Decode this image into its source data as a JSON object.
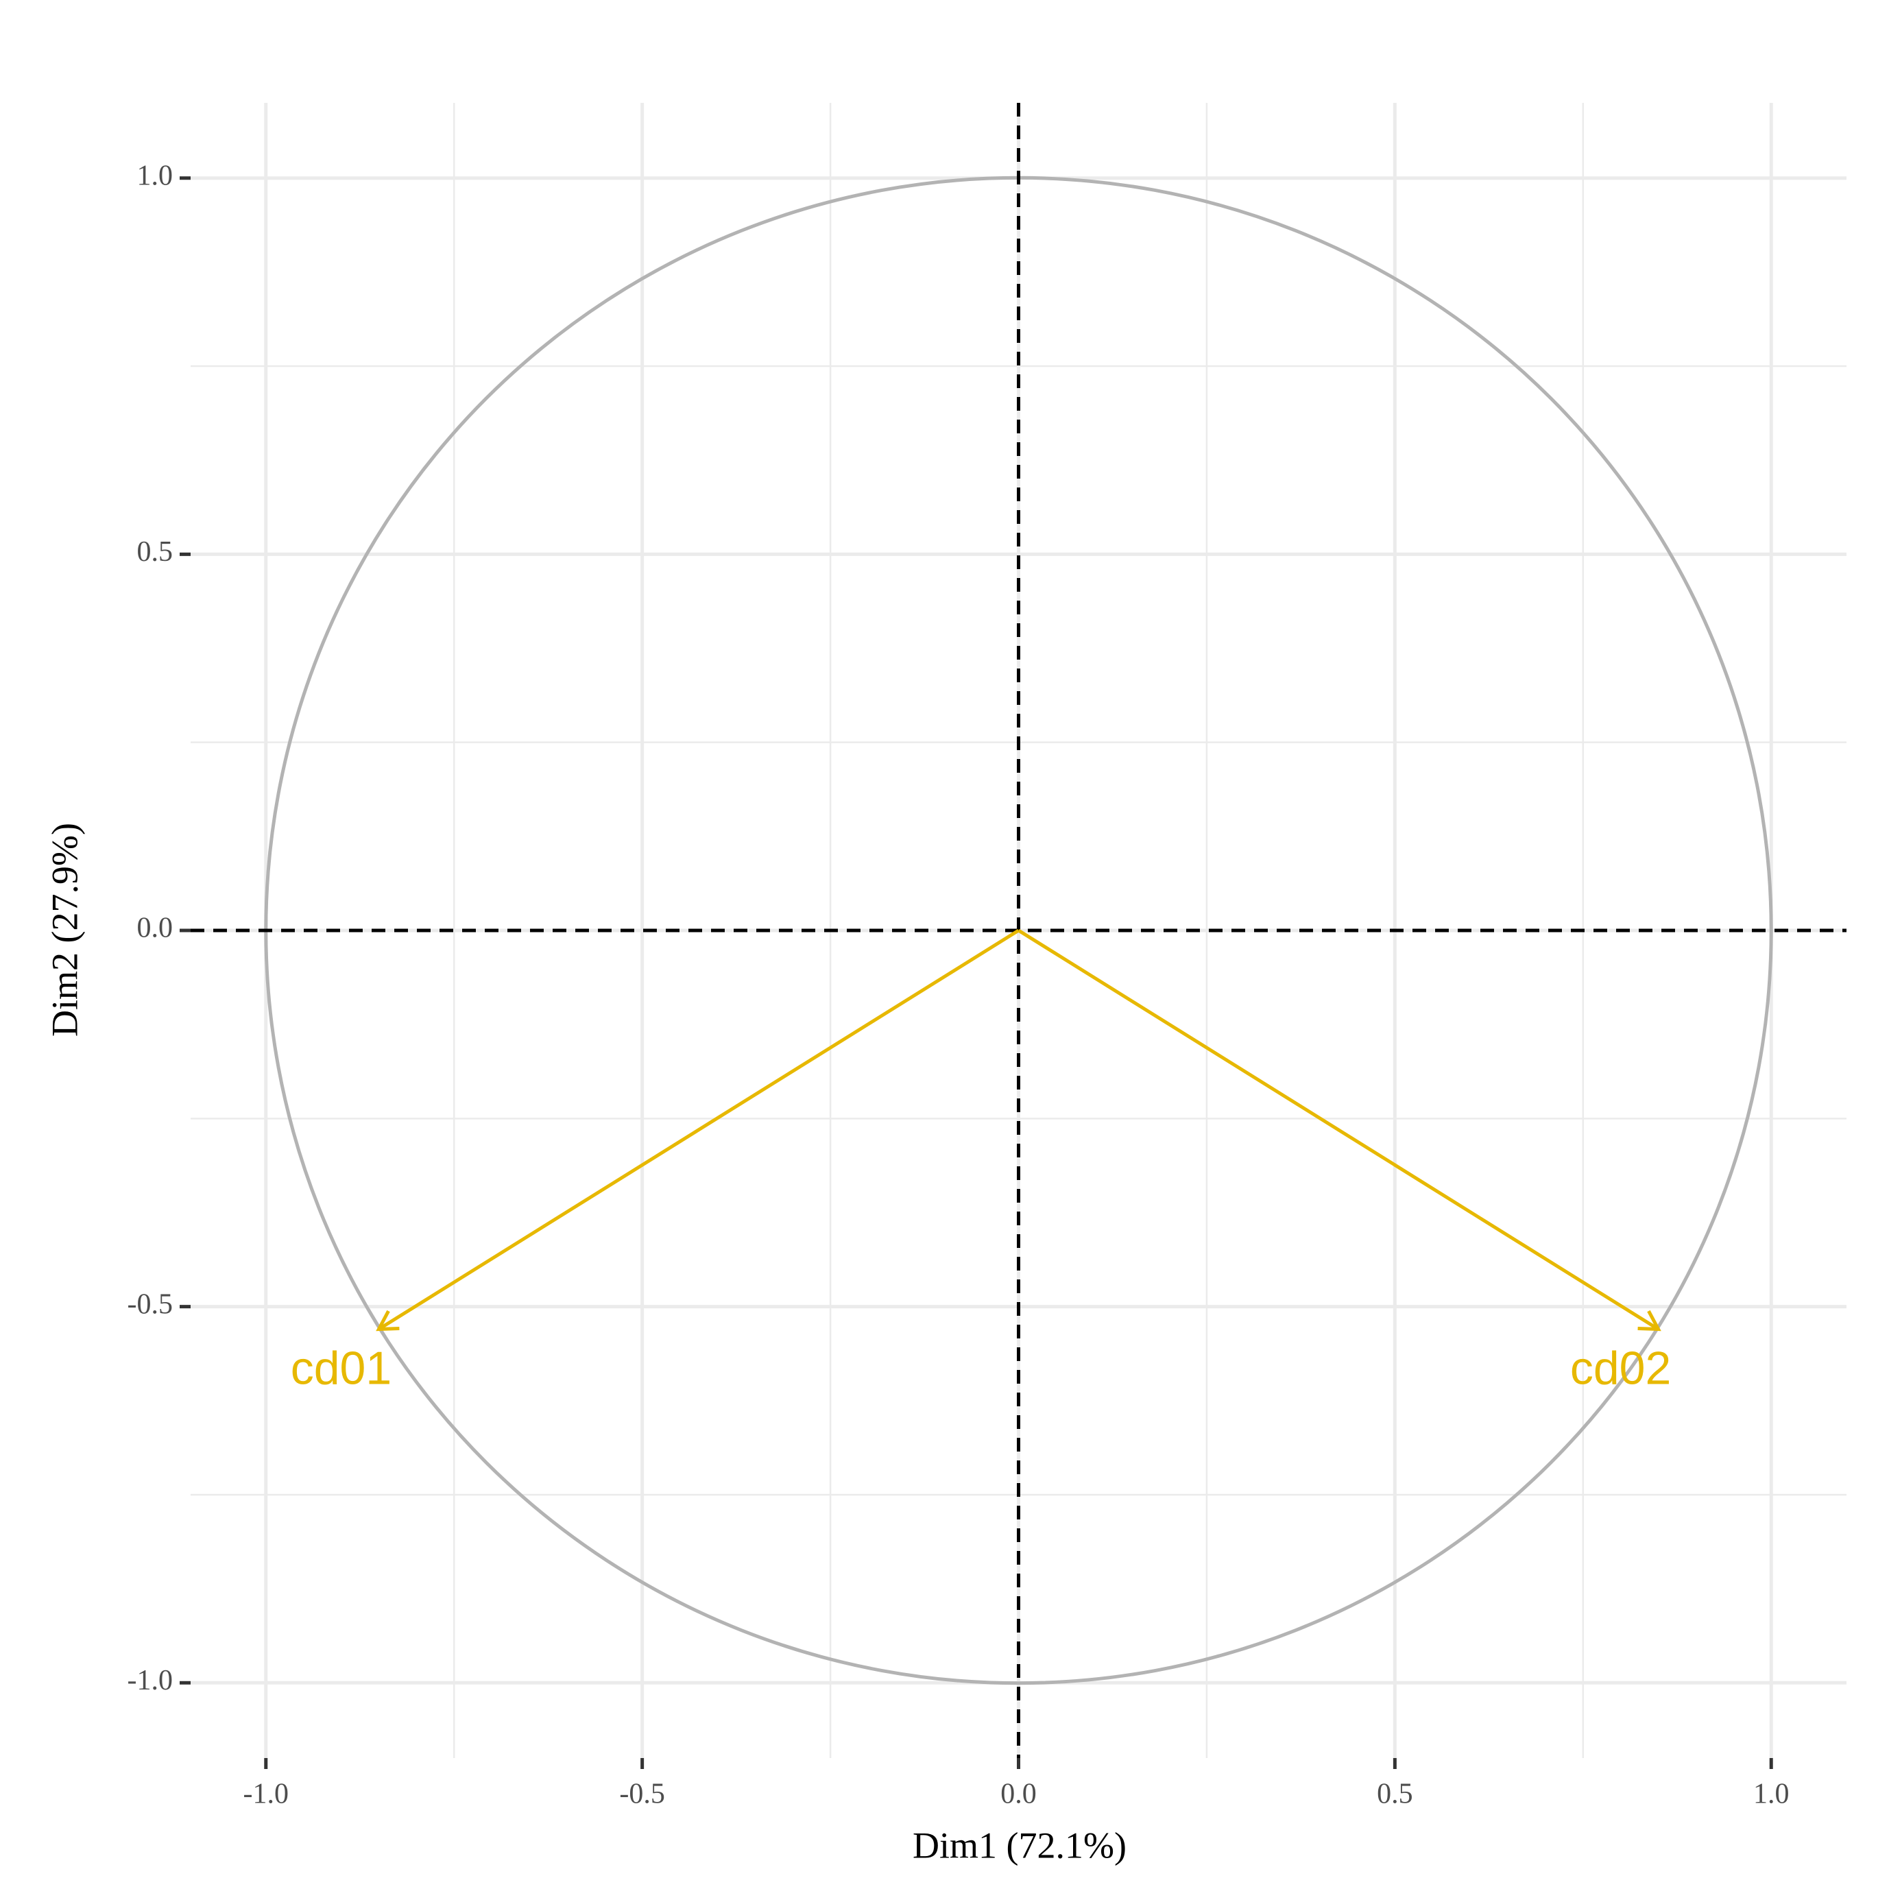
{
  "chart_data": {
    "type": "arrows",
    "x_label": "Dim1 (72.1%)",
    "y_label": "Dim2 (27.9%)",
    "labels": [
      "cd01",
      "cd02"
    ],
    "x": [
      -0.85,
      0.85
    ],
    "values": [
      -0.53,
      -0.53
    ],
    "color": "#E7B800",
    "xlim": [
      -1.1,
      1.1
    ],
    "ylim": [
      -1.1,
      1.1
    ],
    "xticks": [
      {
        "value": -1,
        "label": "-1.0"
      },
      -0.5,
      {
        "value": 0,
        "label": "0.0"
      },
      0.5,
      {
        "value": 1,
        "label": "1.0"
      }
    ],
    "yticks": [
      {
        "value": -1,
        "label": "-1.0"
      },
      -0.5,
      {
        "value": 0,
        "label": "0.0"
      },
      0.5,
      {
        "value": 1,
        "label": "1.0"
      }
    ],
    "minor_ticks": [
      -0.75,
      -0.25,
      0.25,
      0.75
    ],
    "grid": true,
    "circle": {
      "radius": 1,
      "color": "#b3b3b3"
    },
    "reference_lines": {
      "x": 0,
      "y": 0
    }
  }
}
